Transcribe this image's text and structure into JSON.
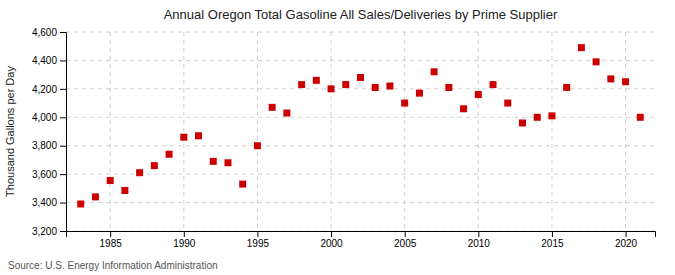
{
  "chart_data": {
    "type": "scatter",
    "title": "Annual Oregon Total Gasoline All Sales/Deliveries by Prime Supplier",
    "ylabel": "Thousand Gallons per Day",
    "source": "Source: U.S. Energy Information Administration",
    "x": [
      1983,
      1984,
      1985,
      1986,
      1987,
      1988,
      1989,
      1990,
      1991,
      1992,
      1993,
      1994,
      1995,
      1996,
      1997,
      1998,
      1999,
      2000,
      2001,
      2002,
      2003,
      2004,
      2005,
      2006,
      2007,
      2008,
      2009,
      2010,
      2011,
      2012,
      2013,
      2014,
      2015,
      2016,
      2017,
      2018,
      2019,
      2020,
      2021
    ],
    "values": [
      3390,
      3440,
      3555,
      3485,
      3610,
      3660,
      3740,
      3860,
      3870,
      3690,
      3680,
      3530,
      3800,
      4070,
      4030,
      4230,
      4260,
      4200,
      4230,
      4280,
      4210,
      4220,
      4100,
      4170,
      4320,
      4210,
      4060,
      4160,
      4230,
      4100,
      3960,
      4000,
      4010,
      4210,
      4490,
      4390,
      4270,
      4250,
      4000
    ],
    "xlim": [
      1982,
      2022
    ],
    "xticks": [
      1985,
      1990,
      1995,
      2000,
      2005,
      2010,
      2015,
      2020
    ],
    "ylim": [
      3200,
      4600
    ],
    "yticks": [
      {
        "value": 3200,
        "label": "3,200"
      },
      {
        "value": 3400,
        "label": "3,400"
      },
      {
        "value": 3600,
        "label": "3,600"
      },
      {
        "value": 3800,
        "label": "3,800"
      },
      {
        "value": 4000,
        "label": "4,000"
      },
      {
        "value": 4200,
        "label": "4,200"
      },
      {
        "value": 4400,
        "label": "4,400"
      },
      {
        "value": 4600,
        "label": "4,600"
      }
    ],
    "color": "#cc0000",
    "marker": "square",
    "grid": true
  }
}
